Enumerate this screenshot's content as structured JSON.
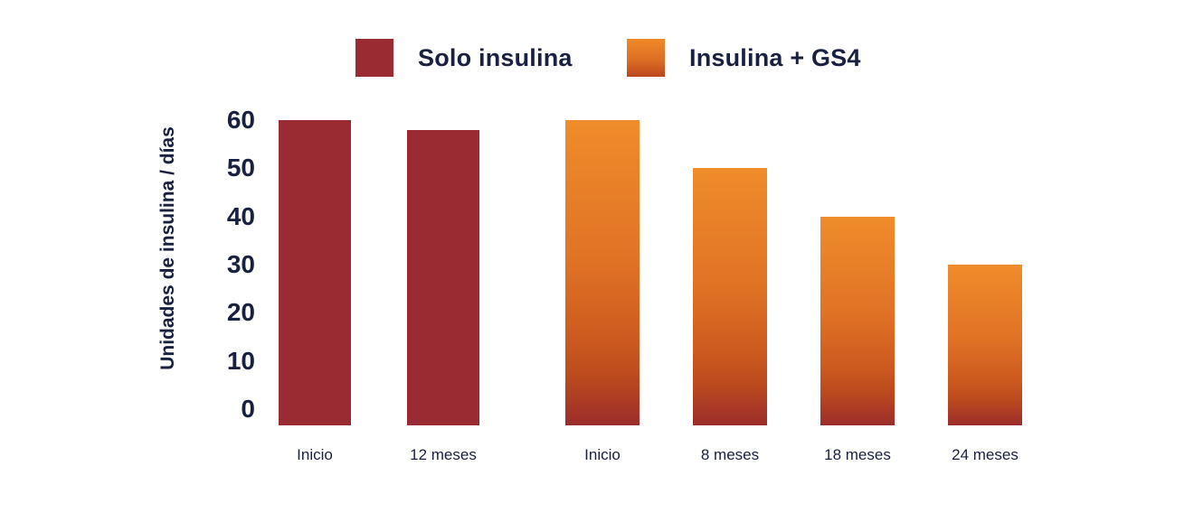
{
  "legend": {
    "items": [
      {
        "label": "Solo insulina",
        "swatch_color": "#9A2B33"
      },
      {
        "label": "Insulina + GS4",
        "swatch_gradient": [
          "#F08A28 0%",
          "#DD6E24 55%",
          "#BC461D 100%"
        ]
      }
    ]
  },
  "colors": {
    "text_navy": "#1a2040",
    "solo_red": "#9A2B33",
    "combo_orange_top": "#EF8C2B",
    "combo_orange_bottom": "#9B2D2B"
  },
  "chart_data": {
    "type": "bar",
    "title": "",
    "xlabel": "",
    "ylabel": "Unidades de insulina / días",
    "ylim": [
      0,
      60
    ],
    "yticks": [
      60,
      50,
      40,
      30,
      20,
      10,
      0
    ],
    "grid": false,
    "legend_position": "top",
    "categories": [
      "Inicio",
      "12 meses",
      "Inicio",
      "8 meses",
      "18 meses",
      "24 meses"
    ],
    "series": [
      {
        "name": "Solo insulina",
        "style": "solid",
        "color": "#9A2B33",
        "values": [
          60,
          58,
          null,
          null,
          null,
          null
        ]
      },
      {
        "name": "Insulina + GS4",
        "style": "gradient",
        "gradient": [
          "#EF8C2B 0%",
          "#E17325 45%",
          "#CC5A1F 72%",
          "#BC4A1E 84%",
          "#9B2D2B 100%"
        ],
        "values": [
          null,
          null,
          60,
          50,
          40,
          30
        ]
      }
    ]
  }
}
